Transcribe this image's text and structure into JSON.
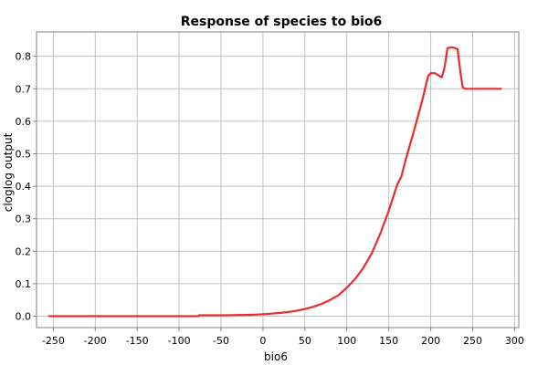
{
  "chart_data": {
    "type": "line",
    "title": "Response of species to bio6",
    "xlabel": "bio6",
    "ylabel": "cloglog output",
    "xlim": [
      -270,
      305
    ],
    "ylim": [
      -0.035,
      0.875
    ],
    "x_ticks": [
      -250,
      -200,
      -150,
      -100,
      -50,
      0,
      50,
      100,
      150,
      200,
      250,
      300
    ],
    "y_ticks": [
      0.0,
      0.1,
      0.2,
      0.3,
      0.4,
      0.5,
      0.6,
      0.7,
      0.8
    ],
    "y_tick_labels": [
      "0.0",
      "0.1",
      "0.2",
      "0.3",
      "0.4",
      "0.5",
      "0.6",
      "0.7",
      "0.8"
    ],
    "x_tick_labels": [
      "-250",
      "-200",
      "-150",
      "-100",
      "-50",
      "0",
      "50",
      "100",
      "150",
      "200",
      "250",
      "300"
    ],
    "grid": true,
    "legend": "none",
    "line_color": "#ee2b2b",
    "series": [
      {
        "x": [
          -255,
          -200,
          -150,
          -100,
          -77,
          -76,
          -50,
          -20,
          -10,
          0,
          10,
          20,
          30,
          40,
          50,
          60,
          70,
          80,
          90,
          100,
          110,
          120,
          130,
          140,
          150,
          160,
          165,
          170,
          180,
          190,
          195,
          197,
          200,
          205,
          210,
          213,
          216,
          218,
          220,
          225,
          228,
          232,
          235,
          238,
          241,
          250,
          284
        ],
        "y": [
          0.0,
          0.0,
          0.0,
          0.0,
          0.0,
          0.003,
          0.003,
          0.004,
          0.005,
          0.006,
          0.008,
          0.01,
          0.013,
          0.017,
          0.022,
          0.029,
          0.038,
          0.05,
          0.065,
          0.088,
          0.115,
          0.15,
          0.195,
          0.255,
          0.325,
          0.405,
          0.43,
          0.48,
          0.57,
          0.665,
          0.72,
          0.74,
          0.748,
          0.748,
          0.74,
          0.735,
          0.76,
          0.79,
          0.825,
          0.828,
          0.826,
          0.822,
          0.76,
          0.705,
          0.7,
          0.7,
          0.7
        ]
      }
    ]
  }
}
